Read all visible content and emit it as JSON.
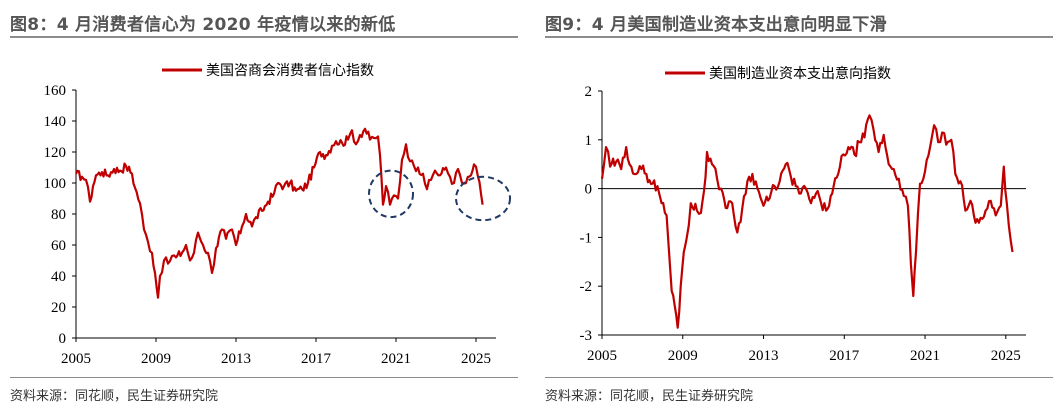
{
  "figures": [
    {
      "id": "fig8",
      "title": "图8：4 月消费者信心为 2020 年疫情以来的新低",
      "source": "资料来源：同花顺，民生证券研究院"
    },
    {
      "id": "fig9",
      "title": "图9：4 月美国制造业资本支出意向明显下滑",
      "source": "资料来源：同花顺，民生证券研究院"
    }
  ],
  "colors": {
    "series": "#c00000",
    "annotation": "#1f3864",
    "axis": "#000000"
  },
  "chart_data": [
    {
      "type": "line",
      "series": [
        {
          "name": "美国咨商会消费者信心指数",
          "anchors": [
            [
              2005.0,
              106
            ],
            [
              2005.3,
              104
            ],
            [
              2005.5,
              102
            ],
            [
              2005.7,
              88
            ],
            [
              2005.85,
              98
            ],
            [
              2006.0,
              105
            ],
            [
              2006.3,
              107
            ],
            [
              2006.6,
              105
            ],
            [
              2006.9,
              109
            ],
            [
              2007.2,
              108
            ],
            [
              2007.5,
              111
            ],
            [
              2007.8,
              106
            ],
            [
              2007.95,
              97
            ],
            [
              2008.2,
              87
            ],
            [
              2008.4,
              70
            ],
            [
              2008.6,
              62
            ],
            [
              2008.8,
              55
            ],
            [
              2008.95,
              42
            ],
            [
              2009.1,
              26
            ],
            [
              2009.2,
              40
            ],
            [
              2009.4,
              50
            ],
            [
              2009.6,
              48
            ],
            [
              2009.8,
              53
            ],
            [
              2010.0,
              52
            ],
            [
              2010.3,
              55
            ],
            [
              2010.5,
              60
            ],
            [
              2010.7,
              50
            ],
            [
              2010.9,
              55
            ],
            [
              2011.1,
              68
            ],
            [
              2011.35,
              60
            ],
            [
              2011.6,
              55
            ],
            [
              2011.8,
              42
            ],
            [
              2012.0,
              58
            ],
            [
              2012.3,
              70
            ],
            [
              2012.5,
              64
            ],
            [
              2012.8,
              70
            ],
            [
              2013.0,
              60
            ],
            [
              2013.3,
              72
            ],
            [
              2013.5,
              80
            ],
            [
              2013.8,
              72
            ],
            [
              2014.0,
              78
            ],
            [
              2014.3,
              82
            ],
            [
              2014.6,
              88
            ],
            [
              2014.9,
              93
            ],
            [
              2015.1,
              100
            ],
            [
              2015.4,
              98
            ],
            [
              2015.7,
              100
            ],
            [
              2016.0,
              95
            ],
            [
              2016.3,
              96
            ],
            [
              2016.6,
              100
            ],
            [
              2016.9,
              110
            ],
            [
              2017.2,
              120
            ],
            [
              2017.5,
              118
            ],
            [
              2017.8,
              124
            ],
            [
              2018.0,
              127
            ],
            [
              2018.3,
              126
            ],
            [
              2018.6,
              128
            ],
            [
              2018.8,
              134
            ],
            [
              2019.0,
              125
            ],
            [
              2019.2,
              131
            ],
            [
              2019.45,
              135
            ],
            [
              2019.7,
              128
            ],
            [
              2019.9,
              129
            ],
            [
              2020.1,
              130
            ],
            [
              2020.2,
              118
            ],
            [
              2020.35,
              86
            ],
            [
              2020.5,
              98
            ],
            [
              2020.7,
              86
            ],
            [
              2020.9,
              92
            ],
            [
              2021.1,
              90
            ],
            [
              2021.3,
              115
            ],
            [
              2021.5,
              125
            ],
            [
              2021.7,
              114
            ],
            [
              2021.9,
              111
            ],
            [
              2022.1,
              110
            ],
            [
              2022.35,
              106
            ],
            [
              2022.55,
              96
            ],
            [
              2022.75,
              102
            ],
            [
              2022.95,
              108
            ],
            [
              2023.2,
              105
            ],
            [
              2023.5,
              110
            ],
            [
              2023.7,
              104
            ],
            [
              2023.9,
              100
            ],
            [
              2024.1,
              109
            ],
            [
              2024.3,
              100
            ],
            [
              2024.5,
              100
            ],
            [
              2024.75,
              105
            ],
            [
              2024.9,
              112
            ],
            [
              2025.1,
              104
            ],
            [
              2025.25,
              93
            ],
            [
              2025.33,
              86.0
            ]
          ]
        }
      ],
      "x_ticks": [
        "2005",
        "2009",
        "2013",
        "2017",
        "2021",
        "2025"
      ],
      "y_ticks": [
        "0",
        "20",
        "40",
        "60",
        "80",
        "100",
        "120",
        "140",
        "160"
      ],
      "xlim": [
        2005,
        2026
      ],
      "ylim": [
        0,
        160
      ],
      "annotations": [
        {
          "shape": "dashed-ellipse",
          "cx": 2020.75,
          "cy": 93,
          "rx": 1.1,
          "ry": 15
        },
        {
          "shape": "dashed-ellipse",
          "cx": 2025.35,
          "cy": 90,
          "rx": 1.35,
          "ry": 14
        }
      ]
    },
    {
      "type": "line",
      "series": [
        {
          "name": "美国制造业资本支出意向指数",
          "anchors": [
            [
              2005.0,
              0.2
            ],
            [
              2005.2,
              0.85
            ],
            [
              2005.4,
              0.45
            ],
            [
              2005.7,
              0.55
            ],
            [
              2005.95,
              0.4
            ],
            [
              2006.2,
              0.85
            ],
            [
              2006.45,
              0.45
            ],
            [
              2006.7,
              0.3
            ],
            [
              2006.95,
              0.4
            ],
            [
              2007.2,
              0.3
            ],
            [
              2007.5,
              0.1
            ],
            [
              2007.75,
              0.05
            ],
            [
              2007.95,
              -0.3
            ],
            [
              2008.2,
              -0.55
            ],
            [
              2008.45,
              -2.1
            ],
            [
              2008.6,
              -2.4
            ],
            [
              2008.75,
              -2.85
            ],
            [
              2008.9,
              -2.0
            ],
            [
              2009.05,
              -1.3
            ],
            [
              2009.2,
              -1.0
            ],
            [
              2009.4,
              -0.3
            ],
            [
              2009.7,
              -0.45
            ],
            [
              2009.9,
              -0.5
            ],
            [
              2010.05,
              -0.05
            ],
            [
              2010.2,
              0.75
            ],
            [
              2010.45,
              0.5
            ],
            [
              2010.7,
              0.2
            ],
            [
              2010.9,
              0.0
            ],
            [
              2011.2,
              -0.4
            ],
            [
              2011.45,
              -0.3
            ],
            [
              2011.7,
              -0.9
            ],
            [
              2011.95,
              -0.4
            ],
            [
              2012.2,
              0.15
            ],
            [
              2012.45,
              0.3
            ],
            [
              2012.7,
              0.0
            ],
            [
              2013.0,
              -0.35
            ],
            [
              2013.3,
              -0.2
            ],
            [
              2013.55,
              0.05
            ],
            [
              2013.8,
              0.15
            ],
            [
              2014.1,
              0.5
            ],
            [
              2014.35,
              0.25
            ],
            [
              2014.6,
              0.05
            ],
            [
              2014.85,
              -0.1
            ],
            [
              2015.1,
              0.0
            ],
            [
              2015.35,
              -0.3
            ],
            [
              2015.6,
              -0.1
            ],
            [
              2015.85,
              -0.3
            ],
            [
              2016.1,
              -0.45
            ],
            [
              2016.4,
              -0.1
            ],
            [
              2016.7,
              0.3
            ],
            [
              2016.95,
              0.7
            ],
            [
              2017.2,
              0.85
            ],
            [
              2017.5,
              0.7
            ],
            [
              2017.75,
              0.95
            ],
            [
              2018.0,
              1.05
            ],
            [
              2018.25,
              1.5
            ],
            [
              2018.45,
              1.2
            ],
            [
              2018.7,
              0.75
            ],
            [
              2018.95,
              1.1
            ],
            [
              2019.2,
              0.5
            ],
            [
              2019.45,
              0.4
            ],
            [
              2019.7,
              0.2
            ],
            [
              2019.95,
              -0.15
            ],
            [
              2020.15,
              -0.35
            ],
            [
              2020.3,
              -1.55
            ],
            [
              2020.42,
              -2.2
            ],
            [
              2020.55,
              -1.3
            ],
            [
              2020.75,
              0.1
            ],
            [
              2021.0,
              0.35
            ],
            [
              2021.25,
              0.85
            ],
            [
              2021.45,
              1.3
            ],
            [
              2021.65,
              0.95
            ],
            [
              2021.85,
              1.15
            ],
            [
              2022.05,
              0.9
            ],
            [
              2022.3,
              1.0
            ],
            [
              2022.5,
              0.3
            ],
            [
              2022.75,
              0.15
            ],
            [
              2023.0,
              -0.45
            ],
            [
              2023.25,
              -0.25
            ],
            [
              2023.5,
              -0.7
            ],
            [
              2023.75,
              -0.6
            ],
            [
              2024.0,
              -0.45
            ],
            [
              2024.25,
              -0.25
            ],
            [
              2024.5,
              -0.55
            ],
            [
              2024.75,
              -0.35
            ],
            [
              2024.9,
              0.45
            ],
            [
              2025.05,
              -0.3
            ],
            [
              2025.15,
              -0.75
            ],
            [
              2025.33,
              -1.3
            ]
          ]
        }
      ],
      "x_ticks": [
        "2005",
        "2009",
        "2013",
        "2017",
        "2021",
        "2025"
      ],
      "y_ticks": [
        "-3",
        "-2",
        "-1",
        "0",
        "1",
        "2"
      ],
      "xlim": [
        2005,
        2026
      ],
      "ylim": [
        -3,
        2
      ]
    }
  ]
}
